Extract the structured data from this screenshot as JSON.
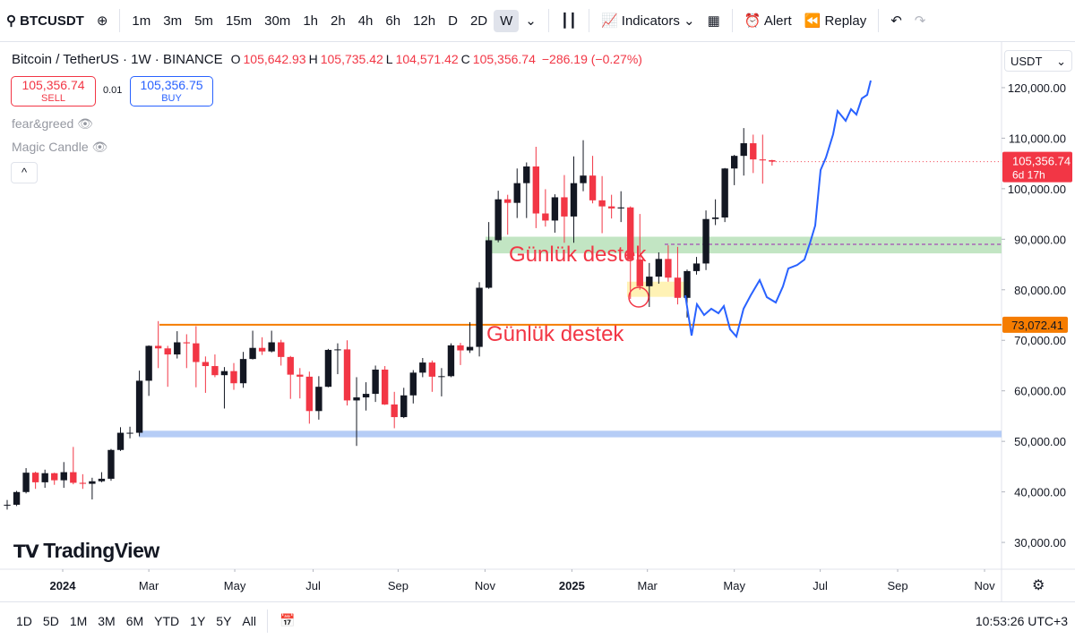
{
  "chart_data": {
    "type": "candlestick",
    "categories": [
      null,
      null,
      null,
      null,
      null,
      null,
      null,
      null,
      null,
      null,
      null,
      null,
      null,
      null,
      null,
      null,
      null,
      null,
      null,
      null,
      null,
      null,
      null,
      null,
      null,
      null,
      null,
      null,
      null,
      null,
      null,
      null,
      null,
      null,
      null,
      null,
      null,
      null,
      null,
      null,
      null,
      null,
      null,
      null,
      null,
      null,
      null,
      null,
      null,
      null,
      null,
      null,
      null,
      null,
      null,
      null,
      null,
      null,
      null,
      null,
      null,
      null,
      null,
      null,
      null,
      null,
      null,
      null,
      null,
      null,
      null,
      null,
      null,
      null,
      null,
      null,
      null,
      null,
      null,
      null,
      null,
      null
    ],
    "open": [
      37400,
      37450,
      39970,
      43800,
      41900,
      43700,
      42300,
      43900,
      41800,
      41600,
      42100,
      42600,
      48300,
      51700,
      51700,
      62000,
      68900,
      68400,
      67200,
      69600,
      69400,
      65700,
      64900,
      63100,
      63900,
      61500,
      66300,
      68500,
      67800,
      69600,
      66700,
      63200,
      62800,
      56000,
      60800,
      68100,
      68200,
      58100,
      58700,
      59400,
      64200,
      57300,
      54800,
      59100,
      63600,
      65600,
      62800,
      62900,
      69000,
      68000,
      68700,
      80400,
      89800,
      97900,
      97200,
      101100,
      104400,
      95100,
      93700,
      98300,
      94500,
      101100,
      102600,
      97700,
      96500,
      96100,
      96300,
      86000,
      80700,
      82600,
      86100,
      82400,
      78400,
      83700,
      85200,
      94000,
      94300,
      104000,
      106500,
      109000,
      105800,
      105642.93
    ],
    "high": [
      38400,
      40200,
      44700,
      44000,
      44400,
      43800,
      45900,
      48900,
      43500,
      42800,
      43900,
      48500,
      52800,
      52900,
      64000,
      69000,
      73800,
      68900,
      71800,
      71200,
      72800,
      66800,
      67200,
      64700,
      65500,
      67700,
      71900,
      70600,
      71900,
      70100,
      66900,
      64500,
      63800,
      62900,
      68300,
      69400,
      70000,
      62700,
      61700,
      65000,
      64900,
      59800,
      60600,
      64100,
      66500,
      66000,
      64500,
      69400,
      69500,
      73600,
      81500,
      93400,
      99600,
      98800,
      104000,
      105200,
      108300,
      99900,
      98900,
      102700,
      106400,
      109600,
      106500,
      102500,
      98800,
      99500,
      96500,
      95000,
      85300,
      87400,
      88800,
      88500,
      84000,
      86500,
      95700,
      97900,
      104100,
      106700,
      112000,
      110700,
      110700,
      105735.42
    ],
    "low": [
      36500,
      37200,
      39700,
      40600,
      40800,
      41400,
      40800,
      41500,
      40600,
      38500,
      41900,
      42200,
      48100,
      50600,
      51000,
      59000,
      64500,
      60800,
      66400,
      64500,
      60700,
      59600,
      62700,
      56500,
      60200,
      60600,
      66200,
      67100,
      67600,
      65000,
      58400,
      58500,
      53500,
      54300,
      60700,
      63300,
      57100,
      49100,
      56100,
      57800,
      57200,
      52600,
      54600,
      57500,
      62700,
      59800,
      58900,
      62700,
      65100,
      67500,
      66800,
      80200,
      89400,
      90900,
      94200,
      94200,
      92200,
      92500,
      91300,
      89300,
      89300,
      99500,
      97100,
      91200,
      94100,
      93400,
      78200,
      80000,
      76600,
      81200,
      81600,
      77100,
      74500,
      83000,
      83900,
      92800,
      93400,
      100700,
      102600,
      103100,
      101000,
      104571.42
    ],
    "close": [
      37450,
      39970,
      43800,
      41900,
      43700,
      42300,
      43900,
      41800,
      41600,
      42100,
      42600,
      48300,
      51700,
      51700,
      62000,
      68900,
      68400,
      67200,
      69600,
      69400,
      65700,
      64900,
      63100,
      63900,
      61500,
      66300,
      68500,
      67800,
      69600,
      66700,
      63200,
      62800,
      56000,
      60800,
      68100,
      68200,
      58100,
      58700,
      59400,
      64200,
      57300,
      54800,
      59100,
      63600,
      65600,
      62800,
      62900,
      69000,
      68000,
      68700,
      80400,
      89800,
      97900,
      97200,
      101100,
      104400,
      95100,
      93700,
      98300,
      94500,
      101100,
      102600,
      97700,
      96500,
      96100,
      96300,
      86000,
      80700,
      82600,
      86100,
      82400,
      78400,
      83700,
      85200,
      94000,
      94300,
      104000,
      106500,
      109000,
      105800,
      105600,
      105356.74
    ],
    "up_color": "#131722",
    "down_color": "#f23645",
    "xlim": [
      -0.76,
      105.3
    ],
    "xticks": [
      {
        "value": 5.88,
        "label": "2024"
      },
      {
        "value": 15.0,
        "label": "Mar"
      },
      {
        "value": 24.1,
        "label": "May"
      },
      {
        "value": 32.4,
        "label": "Jul"
      },
      {
        "value": 41.4,
        "label": "Sep"
      },
      {
        "value": 50.6,
        "label": "Nov"
      },
      {
        "value": 59.8,
        "label": "2025"
      },
      {
        "value": 67.8,
        "label": "Mar"
      },
      {
        "value": 77.0,
        "label": "May"
      },
      {
        "value": 86.1,
        "label": "Jul"
      },
      {
        "value": 94.3,
        "label": "Sep"
      },
      {
        "value": 103.5,
        "label": "Nov"
      }
    ],
    "ylim": [
      24700,
      129200
    ],
    "yticks": [
      {
        "value": 30000,
        "label": "30,000.00"
      },
      {
        "value": 40000,
        "label": "40,000.00"
      },
      {
        "value": 50000,
        "label": "50,000.00"
      },
      {
        "value": 60000,
        "label": "60,000.00"
      },
      {
        "value": 70000,
        "label": "70,000.00"
      },
      {
        "value": 80000,
        "label": "80,000.00"
      },
      {
        "value": 90000,
        "label": "90,000.00"
      },
      {
        "value": 100000,
        "label": "100,000.00"
      },
      {
        "value": 110000,
        "label": "110,000.00"
      },
      {
        "value": 120000,
        "label": "120,000.00"
      }
    ],
    "hline": {
      "value": 73072.41,
      "label": "73,072.41",
      "color": "#f57c00"
    },
    "dashed_line": {
      "value": 89000,
      "color": "#9c27b0"
    },
    "zones": [
      {
        "range": [
          50800,
          52100
        ],
        "color": "#a9c4f5"
      },
      {
        "range": [
          87200,
          90500
        ],
        "color": "#b7e1b9"
      },
      {
        "range": [
          78600,
          81600
        ],
        "color": "#fff0a8"
      }
    ],
    "annotations": [
      "Günlük destek",
      "Günlük destek"
    ],
    "annotation_color": "#f23645",
    "price_tag": {
      "price": "105,356.74",
      "countdown": "6d 17h"
    }
  },
  "toolbar": {
    "symbol": "BTCUSDT",
    "intervals": [
      "1m",
      "3m",
      "5m",
      "15m",
      "30m",
      "1h",
      "2h",
      "4h",
      "6h",
      "12h",
      "D",
      "2D",
      "W"
    ],
    "indicators": "Indicators",
    "alert": "Alert",
    "replay": "Replay"
  },
  "legend": {
    "title": "Bitcoin / TetherUS · 1W · BINANCE",
    "o_label": "O",
    "o": "105,642.93",
    "h_label": "H",
    "h": "105,735.42",
    "l_label": "L",
    "l": "104,571.42",
    "c_label": "C",
    "c": "105,356.74",
    "change": "−286.19 (−0.27%)"
  },
  "trade": {
    "sell_price": "105,356.74",
    "sell": "SELL",
    "spread": "0.01",
    "buy_price": "105,356.75",
    "buy": "BUY"
  },
  "indicators": [
    "fear&greed",
    "Magic Candle"
  ],
  "currency": "USDT",
  "logo": "TradingView",
  "ranges": [
    "1D",
    "5D",
    "1M",
    "3M",
    "6M",
    "YTD",
    "1Y",
    "5Y",
    "All"
  ],
  "clock": "10:53:26 UTC+3"
}
